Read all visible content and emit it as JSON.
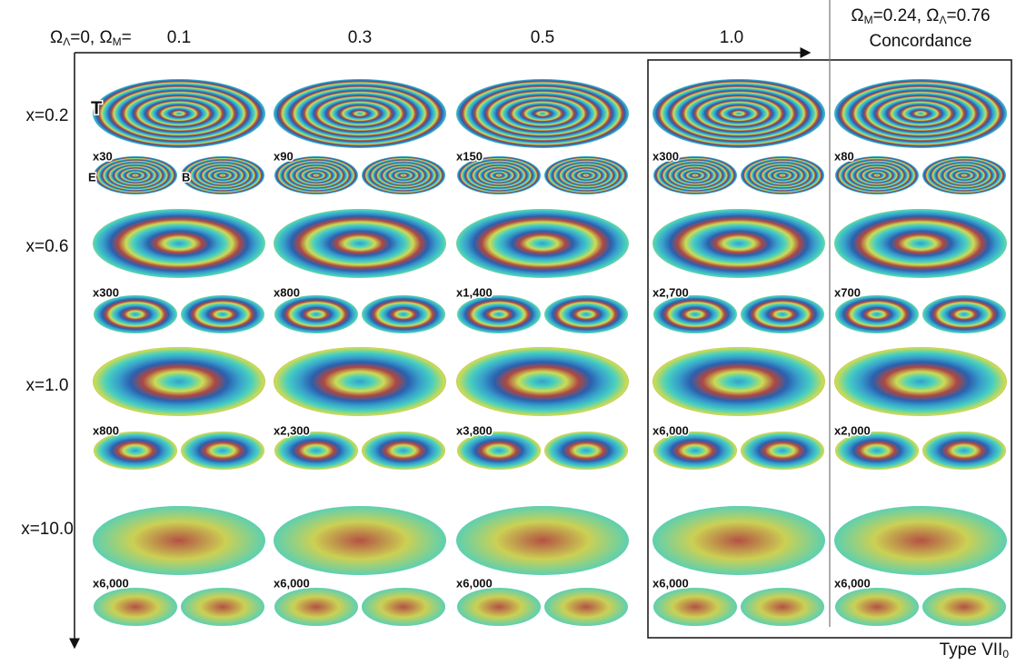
{
  "header": {
    "left_label": [
      "Ω",
      "Λ",
      "=0, Ω",
      "M",
      "="
    ],
    "columns": [
      "0.1",
      "0.3",
      "0.5",
      "1.0"
    ],
    "concordance_params": [
      "Ω",
      "M",
      "=0.24, Ω",
      "Λ",
      "=0.76"
    ],
    "concordance_title": "Concordance"
  },
  "panel_labels": [
    "T",
    "E",
    "B"
  ],
  "rows": [
    {
      "label": "x=0.2",
      "scales": [
        "x30",
        "x90",
        "x150",
        "x300",
        "x80"
      ]
    },
    {
      "label": "x=0.6",
      "scales": [
        "x300",
        "x800",
        "x1,400",
        "x2,700",
        "x700"
      ]
    },
    {
      "label": "x=1.0",
      "scales": [
        "x800",
        "x2,300",
        "x3,800",
        "x6,000",
        "x2,000"
      ]
    },
    {
      "label": "x=10.0",
      "scales": [
        "x6,000",
        "x6,000",
        "x6,000",
        "x6,000",
        "x6,000"
      ]
    }
  ],
  "footer": [
    "Type VII",
    "0"
  ]
}
